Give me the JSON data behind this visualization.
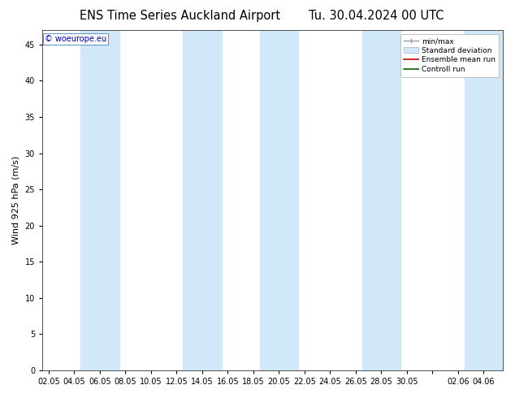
{
  "title1": "ENS Time Series Auckland Airport",
  "title2": "Tu. 30.04.2024 00 UTC",
  "ylabel": "Wind 925 hPa (m/s)",
  "watermark": "© woeurope.eu",
  "ylim": [
    0,
    47
  ],
  "yticks": [
    0,
    5,
    10,
    15,
    20,
    25,
    30,
    35,
    40,
    45
  ],
  "xtick_labels": [
    "02.05",
    "04.05",
    "06.05",
    "08.05",
    "10.05",
    "12.05",
    "14.05",
    "16.05",
    "18.05",
    "20.05",
    "22.05",
    "24.05",
    "26.05",
    "28.05",
    "30.05",
    "",
    "02.06",
    "04.06"
  ],
  "plot_bg": "#ffffff",
  "fig_bg": "#ffffff",
  "band_color": "#d0e8f8",
  "legend_items": [
    "min/max",
    "Standard deviation",
    "Ensemble mean run",
    "Controll run"
  ],
  "title_fontsize": 10.5,
  "label_fontsize": 8,
  "tick_fontsize": 7,
  "num_x_ticks": 18,
  "total_steps": 36,
  "band_spans": [
    [
      3,
      5
    ],
    [
      11,
      13
    ],
    [
      17,
      19
    ],
    [
      25,
      27
    ],
    [
      33,
      35
    ]
  ],
  "xlim": [
    -0.5,
    35.5
  ]
}
